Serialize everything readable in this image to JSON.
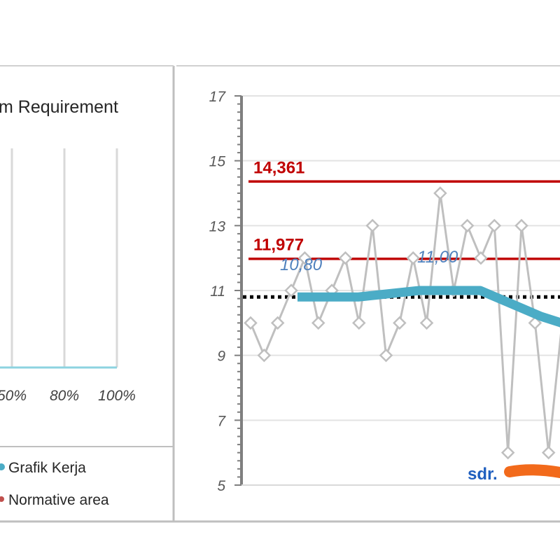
{
  "left_panel": {
    "title": "m Requirement",
    "x_ticks": [
      "50%",
      "80%",
      "100%"
    ],
    "legend": [
      {
        "label": "Grafik Kerja",
        "color": "#4bacc6"
      },
      {
        "label": "Normative area",
        "color": "#c0504d"
      }
    ]
  },
  "chart_data": {
    "type": "line",
    "ylim": [
      5,
      17
    ],
    "y_ticks": [
      "17",
      "15",
      "13",
      "11",
      "9",
      "7",
      "5"
    ],
    "grid": true,
    "series": [
      {
        "color": "#bfbfbf",
        "values": [
          10,
          9,
          10,
          11,
          12,
          10,
          11,
          12,
          10,
          13,
          9,
          10,
          12,
          10,
          14,
          11,
          13,
          12,
          13,
          6,
          13,
          10,
          6,
          10
        ]
      },
      {
        "color": "#4bacc6",
        "values": [
          10.8,
          10.8,
          10.8,
          10.9,
          11.0,
          11.0,
          11.0,
          10.6,
          10.2,
          9.9,
          9.7
        ]
      }
    ],
    "reference_lines": [
      {
        "label": "14,361",
        "value": 14.361,
        "color": "#c00000"
      },
      {
        "label": "11,977",
        "value": 11.977,
        "color": "#c00000"
      },
      {
        "value": 10.8,
        "color": "#000000",
        "style": "dotted"
      }
    ],
    "annotations": [
      {
        "text": "10,80",
        "color": "#4f81bd"
      },
      {
        "text": "11,00",
        "color": "#4f81bd"
      },
      {
        "text": "sdr.",
        "color": "#1f5fbf"
      }
    ]
  }
}
